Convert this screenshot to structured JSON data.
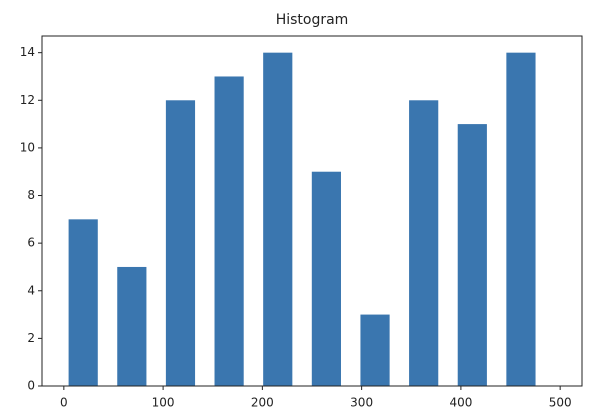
{
  "chart_data": {
    "type": "histogram",
    "title": "Histogram",
    "bins": [
      -5,
      44,
      93,
      142,
      191,
      240,
      289,
      338,
      387,
      436,
      485
    ],
    "values": [
      7,
      5,
      12,
      13,
      14,
      9,
      3,
      12,
      11,
      14
    ],
    "color": "#3a76af",
    "xlim": [
      -22,
      522
    ],
    "xticks": [
      0,
      100,
      200,
      300,
      400,
      500
    ],
    "ylim": [
      0,
      14.7
    ],
    "yticks": [
      0,
      2,
      4,
      6,
      8,
      10,
      12,
      14
    ],
    "grid": false
  }
}
